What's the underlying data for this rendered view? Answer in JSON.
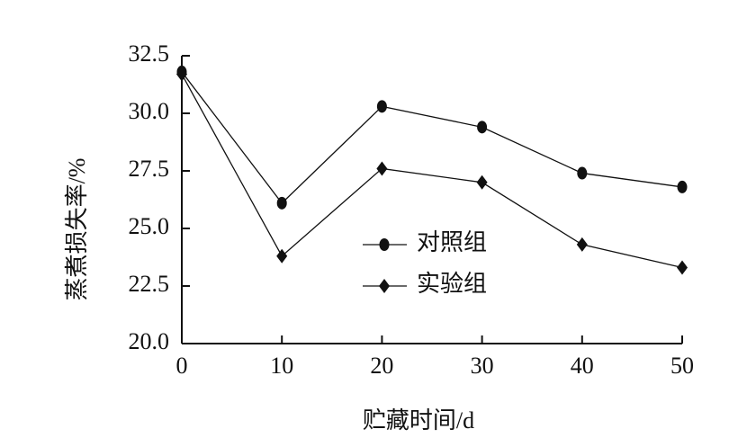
{
  "chart_data": {
    "type": "line",
    "x_label": "贮藏时间/d",
    "y_label": "蒸煮损失率/%",
    "x": [
      0,
      10,
      20,
      30,
      40,
      50
    ],
    "series": [
      {
        "name": "对照组",
        "color": "#111111",
        "marker": "circle",
        "values": [
          31.8,
          26.1,
          30.3,
          29.4,
          27.4,
          26.8
        ]
      },
      {
        "name": "实验组",
        "color": "#111111",
        "marker": "diamond",
        "values": [
          31.7,
          23.8,
          27.6,
          27.0,
          24.3,
          23.3
        ]
      }
    ],
    "xlim": [
      0,
      50
    ],
    "xticks": [
      0,
      10,
      20,
      30,
      40,
      50
    ],
    "ylim": [
      20,
      32.5
    ],
    "yticks": [
      {
        "value": 20,
        "label": "20.0"
      },
      22.5,
      {
        "value": 25,
        "label": "25.0"
      },
      27.5,
      {
        "value": 30,
        "label": "30.0"
      },
      32.5
    ]
  }
}
